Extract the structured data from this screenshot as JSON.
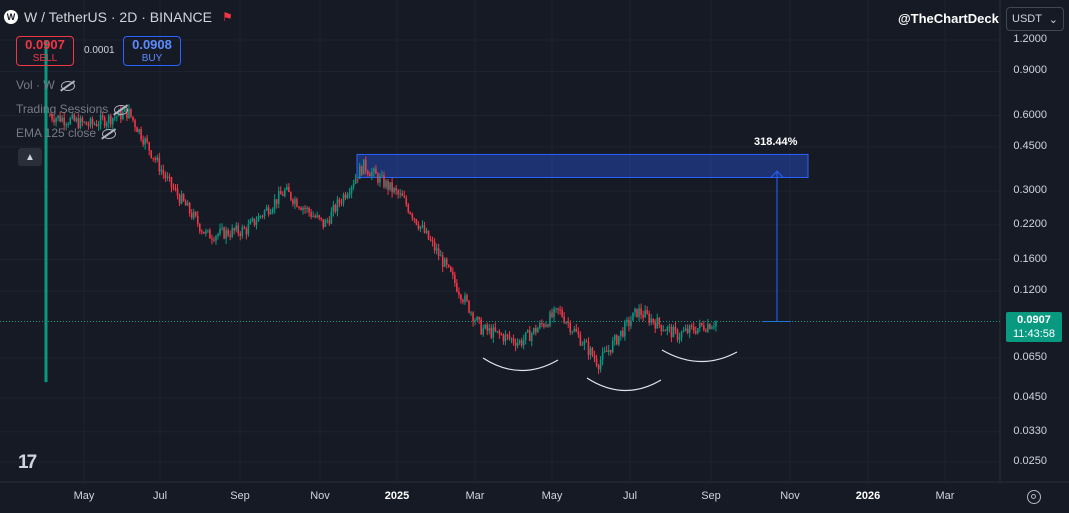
{
  "header": {
    "symbol_logo_letter": "W",
    "title": "W / TetherUS · 2D · BINANCE",
    "live_flag_icon": "flag-icon"
  },
  "trade": {
    "sell_price": "0.0907",
    "sell_label": "SELL",
    "spread": "0.0001",
    "buy_price": "0.0908",
    "buy_label": "BUY"
  },
  "indicators": [
    {
      "label": "Vol · W"
    },
    {
      "label": "Trading Sessions"
    },
    {
      "label": "EMA 125 close"
    }
  ],
  "watermark": "@TheChartDeck",
  "currency": {
    "selected": "USDT"
  },
  "price_axis": {
    "ticks": [
      "1.2000",
      "0.9000",
      "0.6000",
      "0.4500",
      "0.3000",
      "0.2200",
      "0.1600",
      "0.1200",
      "0.0650",
      "0.0450",
      "0.0330",
      "0.0250"
    ],
    "tick_values": [
      1.2,
      0.9,
      0.6,
      0.45,
      0.3,
      0.22,
      0.16,
      0.12,
      0.065,
      0.045,
      0.033,
      0.025
    ],
    "scale": "log"
  },
  "last_price": {
    "value": "0.0907",
    "countdown": "11:43:58"
  },
  "time_axis": {
    "labels": [
      {
        "text": "May",
        "bold": false
      },
      {
        "text": "Jul",
        "bold": false
      },
      {
        "text": "Sep",
        "bold": false
      },
      {
        "text": "Nov",
        "bold": false
      },
      {
        "text": "2025",
        "bold": true
      },
      {
        "text": "Mar",
        "bold": false
      },
      {
        "text": "May",
        "bold": false
      },
      {
        "text": "Jul",
        "bold": false
      },
      {
        "text": "Sep",
        "bold": false
      },
      {
        "text": "Nov",
        "bold": false
      },
      {
        "text": "2026",
        "bold": true
      },
      {
        "text": "Mar",
        "bold": false
      }
    ]
  },
  "measure": {
    "label": "318.44%",
    "target_zone": [
      0.34,
      0.42
    ],
    "from": 0.0907
  },
  "chart_data": {
    "type": "candlestick",
    "series": [
      {
        "name": "W / TetherUS",
        "points": [
          {
            "t": "2024-04",
            "close": 0.6
          },
          {
            "t": "2024-05",
            "close": 0.55
          },
          {
            "t": "2024-06",
            "close": 0.62
          },
          {
            "t": "2024-07",
            "close": 0.33
          },
          {
            "t": "2024-08",
            "close": 0.2
          },
          {
            "t": "2024-09",
            "close": 0.21
          },
          {
            "t": "2024-10",
            "close": 0.3
          },
          {
            "t": "2024-11",
            "close": 0.22
          },
          {
            "t": "2024-12",
            "close": 0.38
          },
          {
            "t": "2025-01",
            "close": 0.28
          },
          {
            "t": "2025-02",
            "close": 0.16
          },
          {
            "t": "2025-03",
            "close": 0.085
          },
          {
            "t": "2025-04",
            "close": 0.075
          },
          {
            "t": "2025-05",
            "close": 0.1
          },
          {
            "t": "2025-06",
            "close": 0.062
          },
          {
            "t": "2025-07",
            "close": 0.1
          },
          {
            "t": "2025-08",
            "close": 0.08
          },
          {
            "t": "2025-09",
            "close": 0.0907
          }
        ]
      }
    ],
    "ylim": [
      0.022,
      1.35
    ],
    "scale": "log",
    "colors": {
      "up": "#089981",
      "down": "#f23645",
      "zone": "#2962ff"
    }
  }
}
